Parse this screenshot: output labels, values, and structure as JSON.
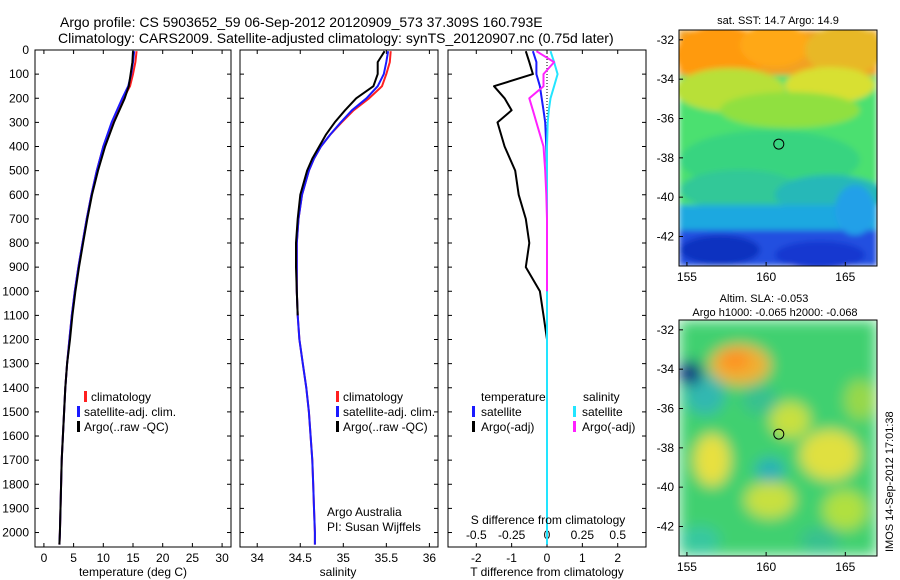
{
  "titles": {
    "line1": "Argo profile: CS 5903652_59 06-Sep-2012 20120909_573 37.309S 160.793E",
    "line2": "Climatology: CARS2009. Satellite-adjusted climatology: synTS_20120907.nc (0.75d later)"
  },
  "colors": {
    "climatology": "#ff2020",
    "satellite": "#1a1aff",
    "argo": "#000000",
    "sal_satellite": "#22e5ff",
    "sal_argo": "#ff20ff"
  },
  "depth_ticks": [
    "0",
    "100",
    "200",
    "300",
    "400",
    "500",
    "600",
    "700",
    "800",
    "900",
    "1000",
    "1100",
    "1200",
    "1300",
    "1400",
    "1500",
    "1600",
    "1700",
    "1800",
    "1900",
    "2000"
  ],
  "chart_data": [
    {
      "type": "line",
      "name": "temperature",
      "xlabel": "temperature (deg C)",
      "ylabel": "",
      "xlim": [
        -1.5,
        31.5
      ],
      "ylim": [
        2060,
        0
      ],
      "xticks": [
        "0",
        "5",
        "10",
        "15",
        "20",
        "25",
        "30"
      ],
      "xtick_values": [
        0,
        5,
        10,
        15,
        20,
        25,
        30
      ],
      "legend": [
        "climatology",
        "satellite-adj. clim.",
        "Argo(..raw -QC)"
      ],
      "depth": [
        5,
        50,
        100,
        150,
        200,
        300,
        400,
        500,
        600,
        700,
        800,
        900,
        1000,
        1100,
        1200,
        1300,
        1400,
        1500,
        1600,
        1700,
        1800,
        1900,
        2000,
        2050
      ],
      "series": [
        {
          "name": "climatology",
          "values": [
            15.6,
            15.4,
            15.0,
            14.5,
            13.4,
            11.5,
            10.0,
            8.9,
            8.0,
            7.2,
            6.5,
            5.8,
            5.2,
            4.7,
            4.3,
            3.9,
            3.6,
            3.4,
            3.2,
            3.0,
            2.9,
            2.8,
            2.7,
            2.6
          ]
        },
        {
          "name": "satellite-adj. clim.",
          "values": [
            15.2,
            15.0,
            14.7,
            14.2,
            13.2,
            11.4,
            10.0,
            8.9,
            8.0,
            7.2,
            6.5,
            5.8,
            5.2,
            4.7,
            4.3,
            3.9,
            3.6,
            3.4,
            3.2,
            3.0,
            2.9,
            2.8,
            2.7,
            2.6
          ]
        },
        {
          "name": "Argo(..raw -QC)",
          "values": [
            15.0,
            14.9,
            14.6,
            14.3,
            13.6,
            11.8,
            10.3,
            9.1,
            8.1,
            7.3,
            6.6,
            5.9,
            5.3,
            4.8,
            4.4,
            3.9,
            3.6,
            3.4,
            3.2,
            3.0,
            2.9,
            2.8,
            2.7,
            2.6
          ]
        }
      ]
    },
    {
      "type": "line",
      "name": "salinity",
      "xlabel": "salinity",
      "ylabel": "",
      "xlim": [
        33.8,
        36.1
      ],
      "ylim": [
        2060,
        0
      ],
      "xticks": [
        "34",
        "34.5",
        "35",
        "35.5",
        "36"
      ],
      "xtick_values": [
        34,
        34.5,
        35,
        35.5,
        36
      ],
      "legend": [
        "climatology",
        "satellite-adj. clim.",
        "Argo(..raw -QC)"
      ],
      "annotation": [
        "Argo Australia",
        "PI: Susan Wijffels"
      ],
      "depth": [
        5,
        50,
        100,
        150,
        200,
        250,
        300,
        350,
        400,
        450,
        500,
        600,
        700,
        800,
        900,
        1000,
        1100,
        1200,
        1300,
        1400,
        1500,
        1600,
        1700,
        1800,
        1900,
        2000,
        2050
      ],
      "series": [
        {
          "name": "climatology",
          "values": [
            35.55,
            35.54,
            35.5,
            35.45,
            35.3,
            35.12,
            34.98,
            34.85,
            34.74,
            34.66,
            34.6,
            34.52,
            34.48,
            34.46,
            34.46,
            34.46,
            34.47,
            34.49,
            34.53,
            34.57,
            34.6,
            34.62,
            34.64,
            34.65,
            34.66,
            34.67,
            34.67
          ]
        },
        {
          "name": "satellite-adj. clim.",
          "values": [
            35.52,
            35.5,
            35.47,
            35.4,
            35.27,
            35.1,
            34.97,
            34.85,
            34.74,
            34.66,
            34.6,
            34.52,
            34.48,
            34.46,
            34.46,
            34.46,
            34.47,
            34.49,
            34.53,
            34.57,
            34.6,
            34.62,
            34.64,
            34.65,
            34.66,
            34.67,
            34.67
          ]
        },
        {
          "name": "Argo(..raw -QC)",
          "values": [
            35.48,
            35.4,
            35.4,
            35.35,
            35.15,
            35.02,
            34.9,
            34.8,
            34.72,
            34.64,
            34.58,
            34.5,
            34.47,
            34.45,
            34.45,
            34.46,
            34.47
          ]
        }
      ]
    },
    {
      "type": "line",
      "name": "difference",
      "xlabel": "T difference from climatology",
      "title_bottom": "S difference from climatology",
      "xlim": [
        -2.8,
        2.8
      ],
      "ylim": [
        2060,
        0
      ],
      "xticks": [
        "-2",
        "-1",
        "0",
        "1",
        "2"
      ],
      "xtick_values": [
        -2,
        -1,
        0,
        1,
        2
      ],
      "sticks": [
        "-0.5",
        "-0.25",
        "0",
        "0.25",
        "0.5"
      ],
      "stick_positions": [
        -2,
        -1,
        0,
        1,
        2
      ],
      "legend_left": {
        "title": "temperature",
        "items": [
          "satellite",
          "Argo(-adj)"
        ]
      },
      "legend_right": {
        "title": "salinity",
        "items": [
          "satellite",
          "Argo(-adj)"
        ]
      },
      "depth": [
        5,
        50,
        100,
        150,
        200,
        250,
        300,
        400,
        500,
        600,
        700,
        800,
        900,
        1000,
        1100,
        1200,
        1300,
        1400,
        1600,
        1800,
        2000,
        2050
      ],
      "series": [
        {
          "name": "T satellite",
          "values": [
            -0.4,
            -0.3,
            -0.3,
            -0.2,
            -0.15,
            -0.1,
            -0.05,
            -0.02,
            0,
            0,
            0,
            0,
            0,
            0,
            0,
            0,
            0,
            0,
            0,
            0,
            0,
            0
          ]
        },
        {
          "name": "T Argo(-adj)",
          "values": [
            -0.6,
            -0.5,
            -0.4,
            -1.5,
            -1.2,
            -1.0,
            -1.4,
            -1.2,
            -0.9,
            -0.8,
            -0.6,
            -0.5,
            -0.6,
            -0.2,
            -0.1,
            0,
            0,
            0,
            0,
            0,
            0,
            0
          ]
        },
        {
          "name": "S satellite",
          "values": [
            0.1,
            0.2,
            0.3,
            0.2,
            0.1,
            0.05,
            0.02,
            0,
            0,
            0,
            0,
            0,
            0,
            0,
            0,
            0,
            0,
            0,
            0,
            0,
            0,
            0
          ]
        },
        {
          "name": "S Argo(-adj)",
          "values": [
            -0.3,
            0.2,
            -0.1,
            -0.1,
            -0.5,
            -0.4,
            -0.3,
            -0.1,
            -0.05,
            -0.02,
            0,
            0,
            0,
            0
          ]
        }
      ]
    },
    {
      "type": "heatmap",
      "title": "sat. SST: 14.7 Argo: 14.9",
      "xticks": [
        "155",
        "160",
        "165"
      ],
      "yticks": [
        "-32",
        "-34",
        "-36",
        "-38",
        "-40",
        "-42"
      ],
      "xlim": [
        154.5,
        167
      ],
      "ylim": [
        -43.5,
        -31.5
      ],
      "marker": [
        160.8,
        -37.3
      ]
    },
    {
      "type": "heatmap",
      "title_lines": [
        "Altim. SLA: -0.053",
        "Argo h1000: -0.065 h2000: -0.068"
      ],
      "xticks": [
        "155",
        "160",
        "165"
      ],
      "yticks": [
        "-32",
        "-34",
        "-36",
        "-38",
        "-40",
        "-42"
      ],
      "xlim": [
        154.5,
        167
      ],
      "ylim": [
        -43.5,
        -31.5
      ],
      "marker": [
        160.8,
        -37.3
      ]
    }
  ],
  "watermark": "IMOS 14-Sep-2012 17:01:38"
}
